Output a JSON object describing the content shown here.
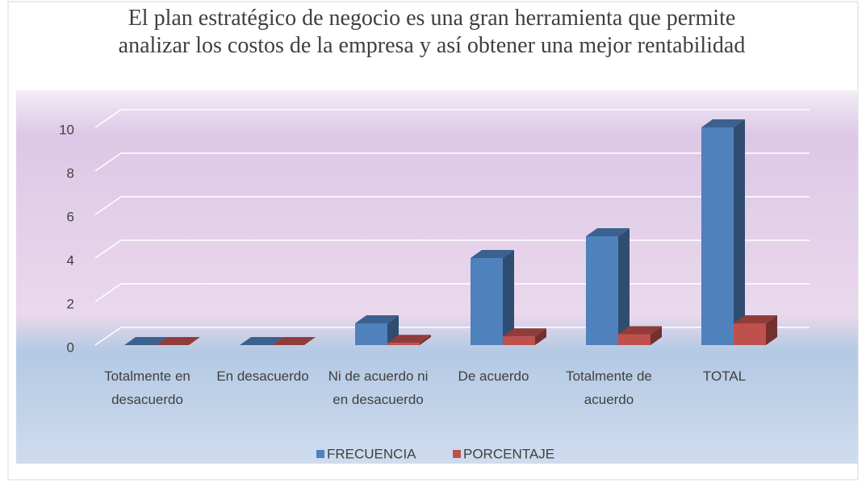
{
  "chart_data": {
    "type": "bar3d",
    "title": "El plan estratégico de negocio es una gran herramienta que permite analizar los costos de la empresa y así obtener una mejor rentabilidad",
    "categories": [
      "Totalmente en desacuerdo",
      "En desacuerdo",
      "Ni de acuerdo ni en desacuerdo",
      "De acuerdo",
      "Totalmente de acuerdo",
      "TOTAL"
    ],
    "series": [
      {
        "name": "FRECUENCIA",
        "color": "#4f81bd",
        "values": [
          0,
          0,
          1,
          4,
          5,
          10
        ]
      },
      {
        "name": "PORCENTAJE",
        "color": "#c0504d",
        "values": [
          0,
          0,
          0.1,
          0.4,
          0.5,
          1
        ]
      }
    ],
    "ylim": [
      0,
      10
    ],
    "yticks": [
      0,
      2,
      4,
      6,
      8,
      10
    ],
    "grid": true,
    "legend": "bottom"
  }
}
